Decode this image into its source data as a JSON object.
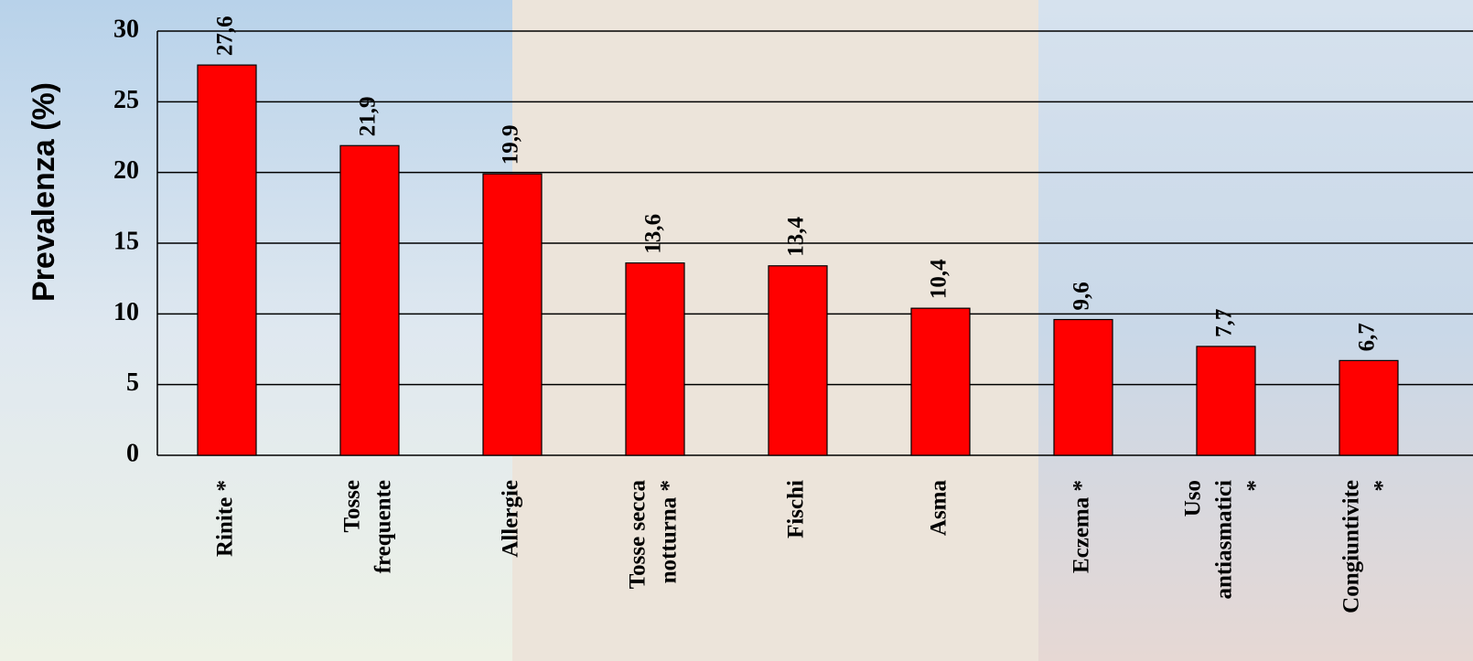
{
  "chart_data": {
    "type": "bar",
    "y_label": "Prevalenza (%)",
    "categories": [
      [
        "Rinite *"
      ],
      [
        "Tosse",
        "frequente"
      ],
      [
        "Allergie"
      ],
      [
        "Tosse secca",
        "notturna *"
      ],
      [
        "Fischi"
      ],
      [
        "Asma"
      ],
      [
        "Eczema *"
      ],
      [
        "Uso",
        "antiasmatici",
        "*"
      ],
      [
        "Congiuntivite",
        "*"
      ]
    ],
    "values": [
      27.6,
      21.9,
      19.9,
      13.6,
      13.4,
      10.4,
      9.6,
      7.7,
      6.7
    ],
    "value_labels": [
      "27,6",
      "21,9",
      "19,9",
      "13,6",
      "13,4",
      "10,4",
      "9,6",
      "7,7",
      "6,7"
    ],
    "color": "#ff0000",
    "ylim": [
      0,
      30
    ],
    "yticks": [
      0,
      5,
      10,
      15,
      20,
      25,
      30
    ],
    "grid": true
  }
}
